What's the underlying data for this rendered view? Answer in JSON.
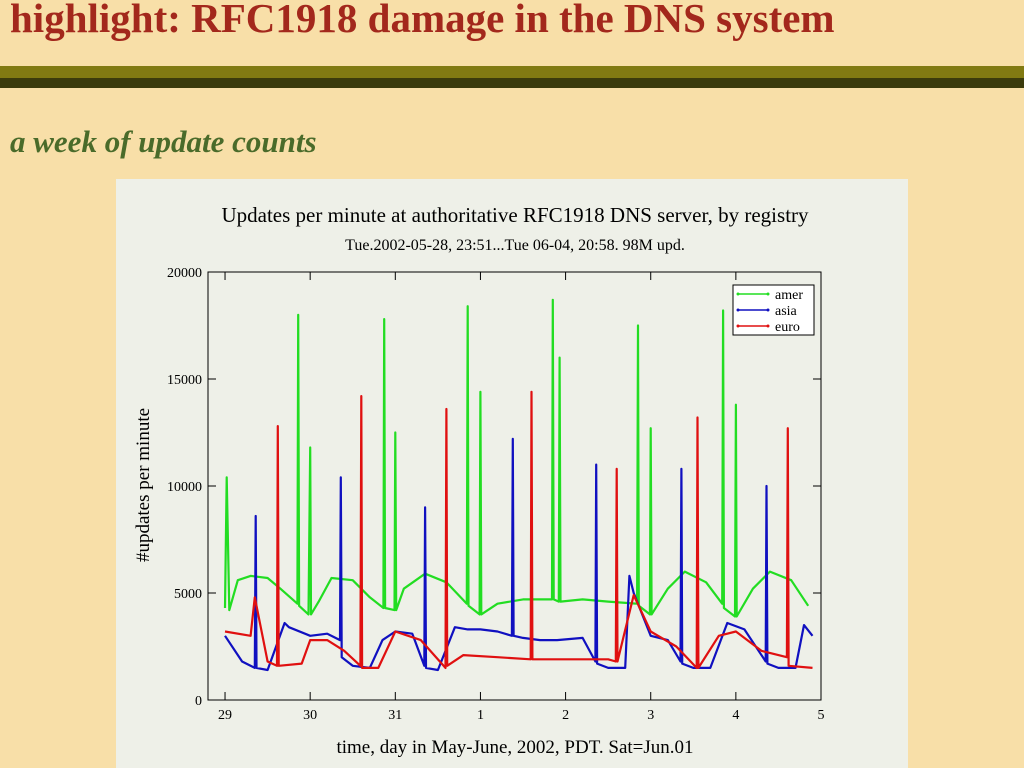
{
  "slide": {
    "title": "highlight: RFC1918 damage in the DNS system",
    "subtitle": "a week of update counts"
  },
  "chart_data": {
    "type": "line",
    "title": "Updates per minute at authoritative RFC1918 DNS server, by registry",
    "subtitle": "Tue.2002-05-28, 23:51...Tue 06-04, 20:58. 98M upd.",
    "x_label": "time, day in May-June, 2002, PDT. Sat=Jun.01",
    "y_label": "#updates per minute",
    "xlim": [
      -0.2,
      7.0
    ],
    "xticks": [
      {
        "value": 0,
        "label": "29"
      },
      {
        "value": 1,
        "label": "30"
      },
      {
        "value": 2,
        "label": "31"
      },
      {
        "value": 3,
        "label": "1"
      },
      {
        "value": 4,
        "label": "2"
      },
      {
        "value": 5,
        "label": "3"
      },
      {
        "value": 6,
        "label": "4"
      },
      {
        "value": 7,
        "label": "5"
      }
    ],
    "ylim": [
      0,
      20000
    ],
    "yticks": [
      0,
      5000,
      10000,
      15000,
      20000
    ],
    "grid": false,
    "legend": "upper right",
    "series": [
      {
        "name": "amer",
        "color": "#22dd22",
        "x": [
          0,
          0.02,
          0.05,
          0.15,
          0.3,
          0.5,
          0.65,
          0.85,
          0.86,
          0.87,
          0.98,
          1.0,
          1.01,
          1.1,
          1.25,
          1.5,
          1.7,
          1.86,
          1.87,
          1.88,
          1.99,
          2.0,
          2.01,
          2.1,
          2.35,
          2.6,
          2.84,
          2.85,
          2.86,
          2.99,
          3.0,
          3.01,
          3.2,
          3.5,
          3.84,
          3.85,
          3.86,
          3.92,
          3.93,
          3.94,
          4.2,
          4.5,
          4.84,
          4.85,
          4.86,
          4.99,
          5.0,
          5.01,
          5.2,
          5.4,
          5.65,
          5.84,
          5.85,
          5.86,
          5.99,
          6.0,
          6.01,
          6.2,
          6.4,
          6.65,
          6.85
        ],
        "values": [
          4300,
          10400,
          4200,
          5600,
          5800,
          5700,
          5200,
          4500,
          18000,
          4400,
          4000,
          11800,
          4000,
          4600,
          5700,
          5600,
          4800,
          4300,
          17800,
          4300,
          4200,
          12500,
          4200,
          5200,
          5900,
          5500,
          4500,
          18400,
          4400,
          4000,
          14400,
          4000,
          4500,
          4700,
          4700,
          18700,
          4700,
          4600,
          16000,
          4600,
          4700,
          4600,
          4500,
          17500,
          4400,
          4000,
          12700,
          4000,
          5200,
          6000,
          5500,
          4500,
          18200,
          4300,
          3900,
          13800,
          3900,
          5200,
          6000,
          5600,
          4400
        ]
      },
      {
        "name": "asia",
        "color": "#1010c0",
        "x": [
          0,
          0.2,
          0.35,
          0.36,
          0.37,
          0.5,
          0.7,
          0.75,
          1.0,
          1.2,
          1.35,
          1.36,
          1.37,
          1.5,
          1.7,
          1.85,
          2.0,
          2.2,
          2.34,
          2.35,
          2.36,
          2.5,
          2.7,
          2.85,
          3.0,
          3.2,
          3.37,
          3.38,
          3.39,
          3.5,
          3.7,
          3.9,
          4.2,
          4.35,
          4.36,
          4.37,
          4.5,
          4.7,
          4.75,
          4.8,
          5.0,
          5.2,
          5.35,
          5.36,
          5.37,
          5.5,
          5.7,
          5.9,
          6.1,
          6.35,
          6.36,
          6.37,
          6.5,
          6.7,
          6.8,
          6.9
        ],
        "values": [
          3000,
          1800,
          1500,
          8600,
          1500,
          1400,
          3600,
          3400,
          3000,
          3100,
          2800,
          10400,
          2000,
          1600,
          1500,
          2800,
          3200,
          3100,
          1600,
          9000,
          1500,
          1400,
          3400,
          3300,
          3300,
          3200,
          3000,
          12200,
          3000,
          2900,
          2800,
          2800,
          2900,
          1800,
          11000,
          1700,
          1500,
          1500,
          5800,
          5000,
          3000,
          2800,
          1800,
          10800,
          1700,
          1500,
          1500,
          3600,
          3300,
          1800,
          10000,
          1700,
          1500,
          1500,
          3500,
          3000
        ]
      },
      {
        "name": "euro",
        "color": "#e01010",
        "x": [
          0,
          0.3,
          0.35,
          0.5,
          0.61,
          0.62,
          0.63,
          0.9,
          1.0,
          1.2,
          1.4,
          1.59,
          1.6,
          1.61,
          1.8,
          2.0,
          2.3,
          2.59,
          2.6,
          2.61,
          2.8,
          3.2,
          3.59,
          3.6,
          3.61,
          4.0,
          4.5,
          4.59,
          4.6,
          4.61,
          4.8,
          5.0,
          5.3,
          5.54,
          5.55,
          5.56,
          5.8,
          6.0,
          6.3,
          6.6,
          6.61,
          6.62,
          6.9
        ],
        "values": [
          3200,
          3000,
          4800,
          1800,
          1600,
          12800,
          1600,
          1700,
          2800,
          2800,
          2300,
          1600,
          14200,
          1500,
          1500,
          3200,
          2800,
          1500,
          13600,
          1600,
          2100,
          2000,
          1900,
          14400,
          1900,
          1900,
          1900,
          1800,
          10800,
          1800,
          4900,
          3200,
          2500,
          1500,
          13200,
          1500,
          3000,
          3200,
          2300,
          2000,
          12700,
          1600,
          1500
        ]
      }
    ]
  }
}
